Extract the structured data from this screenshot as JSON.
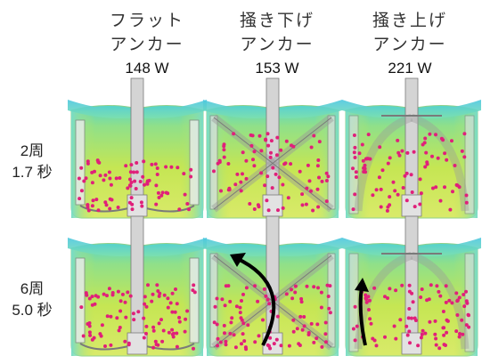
{
  "columns": [
    {
      "line1": "フラット",
      "line2": "アンカー",
      "power": "148 W"
    },
    {
      "line1": "掻き下げ",
      "line2": "アンカー",
      "power": "153 W"
    },
    {
      "line1": "掻き上げ",
      "line2": "アンカー",
      "power": "221 W"
    }
  ],
  "rows": [
    {
      "revolutions": "2周",
      "time": "1.7 秒"
    },
    {
      "revolutions": "6周",
      "time": "5.0 秒"
    }
  ],
  "colors": {
    "particle": "#e0207a",
    "liquid_green": "#b8e04a",
    "liquid_cyan": "#5fd6c8",
    "vessel_outline": "#7a7a7a",
    "arrow": "#000000"
  }
}
